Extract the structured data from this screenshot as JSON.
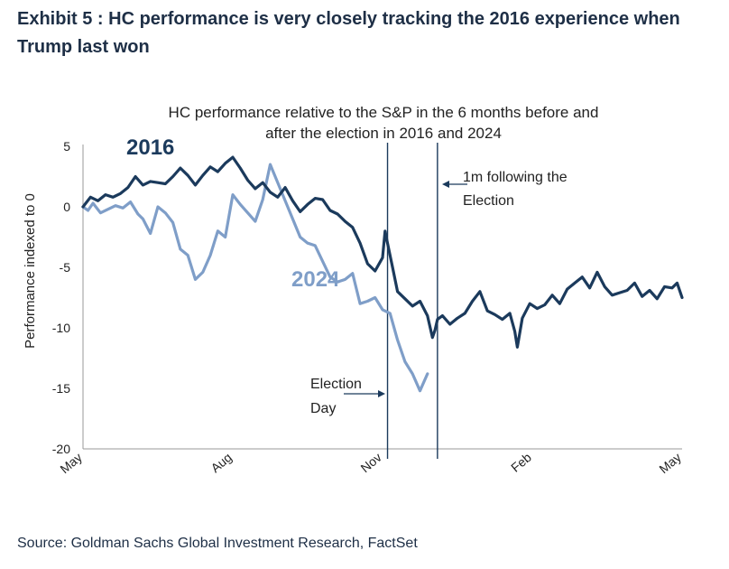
{
  "header": {
    "title": "Exhibit 5 : HC performance is very closely tracking the 2016 experience when Trump last won"
  },
  "footer": {
    "source": "Source: Goldman Sachs Global Investment Research, FactSet"
  },
  "colors": {
    "series_2016": "#1b3a5c",
    "series_2024": "#7f9ec8",
    "axis": "#9a9a9a",
    "marker": "#1b3a5c"
  },
  "chart_data": {
    "type": "line",
    "title_lines": [
      "HC performance relative to the S&P in the 6 months before and",
      "after the election in 2016 and 2024"
    ],
    "ylabel": "Performance indexed to 0",
    "xlabel": "",
    "ylim": [
      -20,
      5
    ],
    "yticks": [
      5,
      0,
      -5,
      -10,
      -15,
      -20
    ],
    "xlim": [
      0,
      12
    ],
    "xticks": [
      {
        "x": 0,
        "label": "May"
      },
      {
        "x": 3,
        "label": "Aug"
      },
      {
        "x": 6,
        "label": "Nov"
      },
      {
        "x": 9,
        "label": "Feb"
      },
      {
        "x": 12,
        "label": "May"
      }
    ],
    "grid": false,
    "series": [
      {
        "name": "2016",
        "x": [
          0,
          0.15,
          0.3,
          0.45,
          0.6,
          0.75,
          0.9,
          1.05,
          1.2,
          1.35,
          1.5,
          1.65,
          1.8,
          1.95,
          2.1,
          2.25,
          2.4,
          2.55,
          2.7,
          2.85,
          3.0,
          3.15,
          3.3,
          3.45,
          3.6,
          3.75,
          3.9,
          4.05,
          4.2,
          4.35,
          4.5,
          4.65,
          4.8,
          4.95,
          5.1,
          5.25,
          5.4,
          5.55,
          5.7,
          5.85,
          6.0,
          6.05,
          6.1,
          6.2,
          6.3,
          6.45,
          6.6,
          6.75,
          6.9,
          7.0,
          7.05,
          7.1,
          7.2,
          7.35,
          7.5,
          7.65,
          7.8,
          7.95,
          8.1,
          8.25,
          8.4,
          8.55,
          8.65,
          8.7,
          8.8,
          8.95,
          9.1,
          9.25,
          9.4,
          9.55,
          9.7,
          9.85,
          10.0,
          10.15,
          10.3,
          10.45,
          10.6,
          10.75,
          10.9,
          11.05,
          11.2,
          11.35,
          11.5,
          11.65,
          11.8,
          11.9,
          12.0
        ],
        "values": [
          0.0,
          0.8,
          0.5,
          1.0,
          0.8,
          1.1,
          1.6,
          2.5,
          1.8,
          2.1,
          2.0,
          1.9,
          2.5,
          3.2,
          2.6,
          1.8,
          2.6,
          3.3,
          2.9,
          3.6,
          4.1,
          3.2,
          2.2,
          1.5,
          2.0,
          1.2,
          0.8,
          1.6,
          0.5,
          -0.4,
          0.2,
          0.7,
          0.6,
          -0.3,
          -0.6,
          -1.2,
          -1.7,
          -3.0,
          -4.7,
          -5.3,
          -4.2,
          -2.0,
          -3.0,
          -5.0,
          -7.0,
          -7.6,
          -8.2,
          -7.8,
          -9.0,
          -10.8,
          -10.2,
          -9.3,
          -9.0,
          -9.7,
          -9.2,
          -8.8,
          -7.8,
          -7.0,
          -8.6,
          -8.9,
          -9.3,
          -8.8,
          -10.3,
          -11.6,
          -9.2,
          -8.0,
          -8.4,
          -8.1,
          -7.3,
          -8.0,
          -6.8,
          -6.3,
          -5.8,
          -6.7,
          -5.4,
          -6.6,
          -7.3,
          -7.1,
          -6.9,
          -6.3,
          -7.4,
          -6.9,
          -7.6,
          -6.6,
          -6.7,
          -6.3,
          -7.5
        ]
      },
      {
        "name": "2024",
        "x": [
          0,
          0.1,
          0.2,
          0.35,
          0.5,
          0.65,
          0.8,
          0.95,
          1.1,
          1.2,
          1.35,
          1.5,
          1.65,
          1.8,
          1.95,
          2.1,
          2.25,
          2.4,
          2.55,
          2.7,
          2.85,
          3.0,
          3.15,
          3.3,
          3.45,
          3.6,
          3.75,
          3.9,
          4.05,
          4.2,
          4.35,
          4.5,
          4.65,
          4.8,
          4.95,
          5.1,
          5.25,
          5.4,
          5.55,
          5.7,
          5.85,
          6.0,
          6.15,
          6.3,
          6.45,
          6.6,
          6.75,
          6.9
        ],
        "values": [
          0.0,
          -0.3,
          0.3,
          -0.5,
          -0.2,
          0.1,
          -0.1,
          0.4,
          -0.6,
          -1.0,
          -2.2,
          0.0,
          -0.5,
          -1.3,
          -3.5,
          -4.0,
          -6.0,
          -5.4,
          -4.0,
          -2.0,
          -2.5,
          1.0,
          0.2,
          -0.5,
          -1.2,
          0.6,
          3.5,
          2.0,
          0.5,
          -1.0,
          -2.5,
          -3.0,
          -3.2,
          -4.5,
          -5.8,
          -6.2,
          -6.0,
          -5.5,
          -8.0,
          -7.8,
          -7.5,
          -8.5,
          -8.8,
          -11.0,
          -12.8,
          -13.8,
          -15.2,
          -13.8
        ]
      }
    ],
    "annotations": [
      {
        "id": "election",
        "lines": [
          "Election",
          "Day"
        ],
        "x": 6.1
      },
      {
        "id": "one_month",
        "lines": [
          "1m following the",
          "Election"
        ],
        "x": 7.1
      }
    ]
  }
}
